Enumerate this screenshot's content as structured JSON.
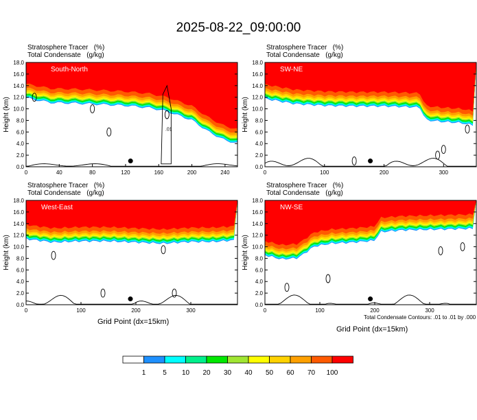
{
  "title": "2025-08-22_09:00:00",
  "panels": [
    {
      "id": "south-north",
      "field_label": "Stratosphere Tracer",
      "field_unit": "(%)",
      "contour_label": "Total Condensate",
      "contour_unit": "(g/kg)",
      "section_label": "South-North",
      "contour_value_label": ".01",
      "xticks": [
        "0",
        "40",
        "80",
        "120",
        "160",
        "200",
        "240"
      ],
      "xmax": 255,
      "marker_x": 126
    },
    {
      "id": "sw-ne",
      "field_label": "Stratosphere Tracer",
      "field_unit": "(%)",
      "contour_label": "Total Condensate",
      "contour_unit": "(g/kg)",
      "section_label": "SW-NE",
      "xticks": [
        "0",
        "100",
        "200",
        "300"
      ],
      "xmax": 355,
      "marker_x": 177
    },
    {
      "id": "west-east",
      "field_label": "Stratosphere Tracer",
      "field_unit": "(%)",
      "contour_label": "Total Condensate",
      "contour_unit": "(g/kg)",
      "section_label": "West-East",
      "xticks": [
        "0",
        "100",
        "200",
        "300"
      ],
      "xmax": 385,
      "marker_x": 190
    },
    {
      "id": "nw-se",
      "field_label": "Stratosphere Tracer",
      "field_unit": "(%)",
      "contour_label": "Total Condensate",
      "contour_unit": "(g/kg)",
      "section_label": "NW-SE",
      "xticks": [
        "0",
        "100",
        "200",
        "300"
      ],
      "xmax": 385,
      "marker_x": 192
    }
  ],
  "yticks": [
    "0.0",
    "2.0",
    "4.0",
    "6.0",
    "8.0",
    "10.0",
    "12.0",
    "14.0",
    "16.0",
    "18.0"
  ],
  "ylabel": "Height (km)",
  "xlabel": "Grid Point (dx=15km)",
  "contour_note": "Total Condensate Contours: .01 to .01 by .000",
  "colorbar": {
    "labels": [
      "1",
      "5",
      "10",
      "20",
      "30",
      "40",
      "50",
      "60",
      "70",
      "100"
    ],
    "colors": [
      "#ffffff",
      "#1e90ff",
      "#00ffff",
      "#00f08c",
      "#00e800",
      "#a0e632",
      "#ffff00",
      "#ffd200",
      "#ffa000",
      "#ff5a00",
      "#ff0000"
    ]
  },
  "chart_data": [
    {
      "type": "heatmap",
      "title": "South-North",
      "xlabel": "",
      "ylabel": "Height (km)",
      "ylim": [
        0,
        18
      ],
      "xlim": [
        0,
        255
      ],
      "tropopause_height_km": {
        "x": [
          0,
          30,
          60,
          90,
          120,
          150,
          170,
          200,
          220,
          240,
          255
        ],
        "y": [
          14.3,
          13.5,
          13.4,
          13.2,
          13.0,
          12.6,
          12.0,
          10.5,
          8.5,
          7.0,
          6.5
        ]
      }
    },
    {
      "type": "heatmap",
      "title": "SW-NE",
      "xlabel": "",
      "ylabel": "Height (km)",
      "ylim": [
        0,
        18
      ],
      "xlim": [
        0,
        355
      ],
      "tropopause_height_km": {
        "x": [
          0,
          50,
          100,
          150,
          200,
          260,
          270,
          300,
          330,
          355
        ],
        "y": [
          14.2,
          13.3,
          13.0,
          12.9,
          12.9,
          12.7,
          10.5,
          10.2,
          10.0,
          9.5
        ]
      }
    },
    {
      "type": "heatmap",
      "title": "West-East",
      "xlabel": "Grid Point (dx=15km)",
      "ylabel": "Height (km)",
      "ylim": [
        0,
        18
      ],
      "xlim": [
        0,
        385
      ],
      "tropopause_height_km": {
        "x": [
          0,
          50,
          100,
          150,
          200,
          250,
          300,
          340,
          385
        ],
        "y": [
          13.8,
          13.2,
          13.4,
          13.4,
          13.2,
          13.0,
          13.3,
          13.3,
          13.6
        ]
      }
    },
    {
      "type": "heatmap",
      "title": "NW-SE",
      "xlabel": "Grid Point (dx=15km)",
      "ylabel": "Height (km)",
      "ylim": [
        0,
        18
      ],
      "xlim": [
        0,
        385
      ],
      "tropopause_height_km": {
        "x": [
          0,
          30,
          60,
          90,
          120,
          160,
          200,
          210,
          250,
          300,
          385
        ],
        "y": [
          11.0,
          10.3,
          10.5,
          12.5,
          13.0,
          13.2,
          13.5,
          15.0,
          15.3,
          15.4,
          15.6
        ]
      }
    }
  ]
}
